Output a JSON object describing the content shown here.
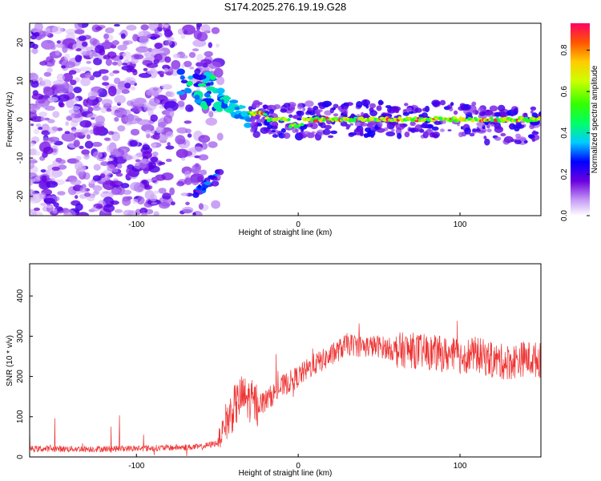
{
  "title": "S174.2025.276.19.19.G28",
  "spectrogram": {
    "chart_data": {
      "type": "heatmap",
      "xlabel": "Height of straight line (km)",
      "ylabel": "Frequency (Hz)",
      "xlim": [
        -166,
        150
      ],
      "ylim": [
        -25,
        25
      ],
      "xticks": [
        -100,
        0,
        100
      ],
      "yticks": [
        -20,
        -10,
        0,
        10,
        20
      ],
      "colorbar": {
        "label": "Normalized spectral amplitude",
        "range": [
          0,
          0.93
        ],
        "ticks": [
          0.0,
          0.2,
          0.4,
          0.6,
          0.8
        ]
      },
      "features": [
        {
          "name": "noise region",
          "x_range": [
            -166,
            -60
          ],
          "y_range": [
            -25,
            25
          ],
          "amplitude": 0.15
        },
        {
          "name": "upper blob",
          "x": -58,
          "y": 9,
          "amplitude": 0.35
        },
        {
          "name": "lower descending arc",
          "x_range": [
            -65,
            -48
          ],
          "y_range": [
            -20,
            -13
          ],
          "amplitude": 0.2
        },
        {
          "name": "carrier line",
          "x_range": [
            -30,
            150
          ],
          "y": 0,
          "amplitude": 0.8
        }
      ]
    }
  },
  "snr": {
    "chart_data": {
      "type": "line",
      "xlabel": "Height of straight line (km)",
      "ylabel": "SNR (10 * v/v)",
      "xlim": [
        -166,
        150
      ],
      "ylim": [
        0,
        480
      ],
      "xticks": [
        -100,
        0,
        100
      ],
      "yticks": [
        0,
        100,
        200,
        300,
        400
      ],
      "series": [
        {
          "name": "SNR",
          "color": "#ee3333",
          "x": [
            -166,
            -150,
            -120,
            -90,
            -60,
            -50,
            -45,
            -40,
            -35,
            -30,
            -25,
            -20,
            -10,
            0,
            10,
            20,
            30,
            40,
            50,
            60,
            70,
            80,
            90,
            100,
            110,
            120,
            130,
            140,
            150
          ],
          "values": [
            20,
            20,
            20,
            22,
            25,
            35,
            80,
            120,
            150,
            140,
            130,
            140,
            175,
            200,
            230,
            250,
            280,
            275,
            275,
            265,
            265,
            260,
            255,
            250,
            255,
            240,
            235,
            245,
            240
          ]
        }
      ]
    }
  },
  "colors": {
    "line": "#ee3333",
    "axis": "#000000",
    "background": "#ffffff"
  }
}
